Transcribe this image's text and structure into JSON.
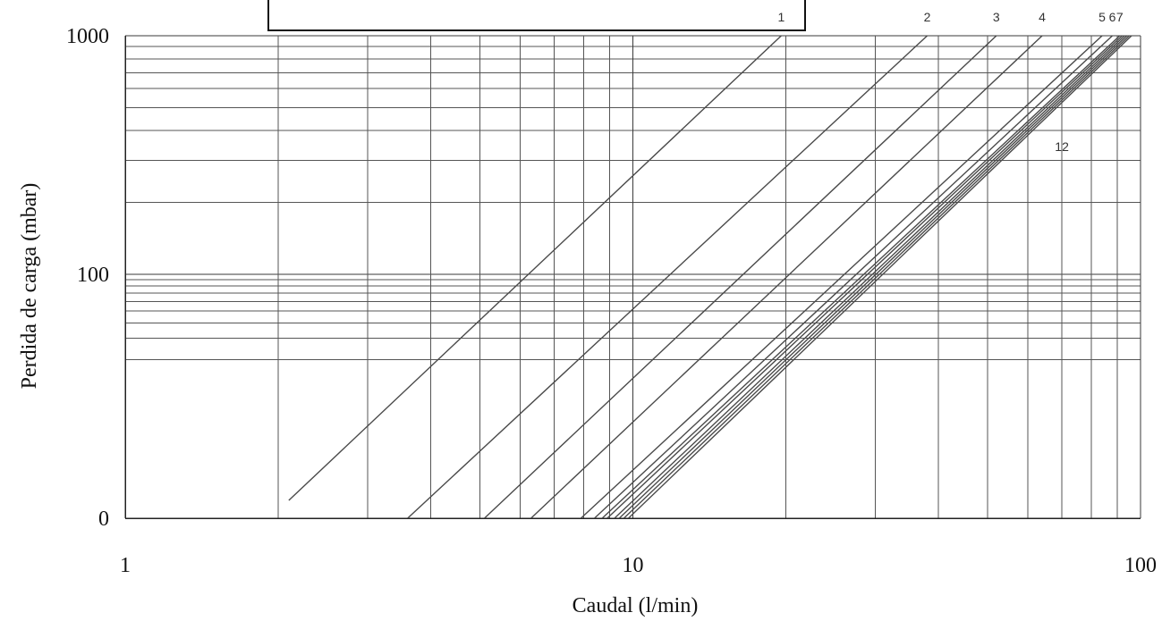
{
  "chart_data": {
    "type": "line",
    "title": "",
    "xlabel": "Caudal  (l/min)",
    "ylabel": "Perdida de carga (mbar)",
    "x_scale": "log",
    "x_range": [
      1,
      100
    ],
    "y_scale": "log-like",
    "y_tick_labels": [
      "0",
      "100",
      "1000"
    ],
    "x_tick_labels": [
      "1",
      "10",
      "100"
    ],
    "grid": true,
    "minor_x": [
      2,
      3,
      4,
      5,
      6,
      7,
      8,
      9,
      20,
      30,
      40,
      50,
      60,
      70,
      80,
      90
    ],
    "minor_y_low": [
      20,
      30,
      40,
      50,
      60,
      70,
      80,
      90
    ],
    "minor_y_high": [
      200,
      300,
      400,
      500,
      600,
      700,
      800,
      900
    ],
    "series": [
      {
        "name": "1",
        "x_start": 2.1,
        "x_end": 19.6
      },
      {
        "name": "2",
        "x_start": 3.6,
        "x_end": 38
      },
      {
        "name": "3",
        "x_start": 5.1,
        "x_end": 52
      },
      {
        "name": "4",
        "x_start": 6.3,
        "x_end": 64
      },
      {
        "name": "5",
        "x_start": 7.9,
        "x_end": 84
      },
      {
        "name": "6",
        "x_start": 8.4,
        "x_end": 88
      },
      {
        "name": "7",
        "x_start": 8.7,
        "x_end": 91
      },
      {
        "name": "",
        "x_start": 8.9,
        "x_end": 92
      },
      {
        "name": "",
        "x_start": 9.2,
        "x_end": 93
      },
      {
        "name": "",
        "x_start": 9.4,
        "x_end": 94
      },
      {
        "name": "",
        "x_start": 9.6,
        "x_end": 95
      },
      {
        "name": "12",
        "x_start": 9.8,
        "x_end": 96
      }
    ],
    "visible_curve_labels": [
      "1",
      "2",
      "3",
      "4",
      "5",
      "6",
      "7",
      "12"
    ]
  }
}
